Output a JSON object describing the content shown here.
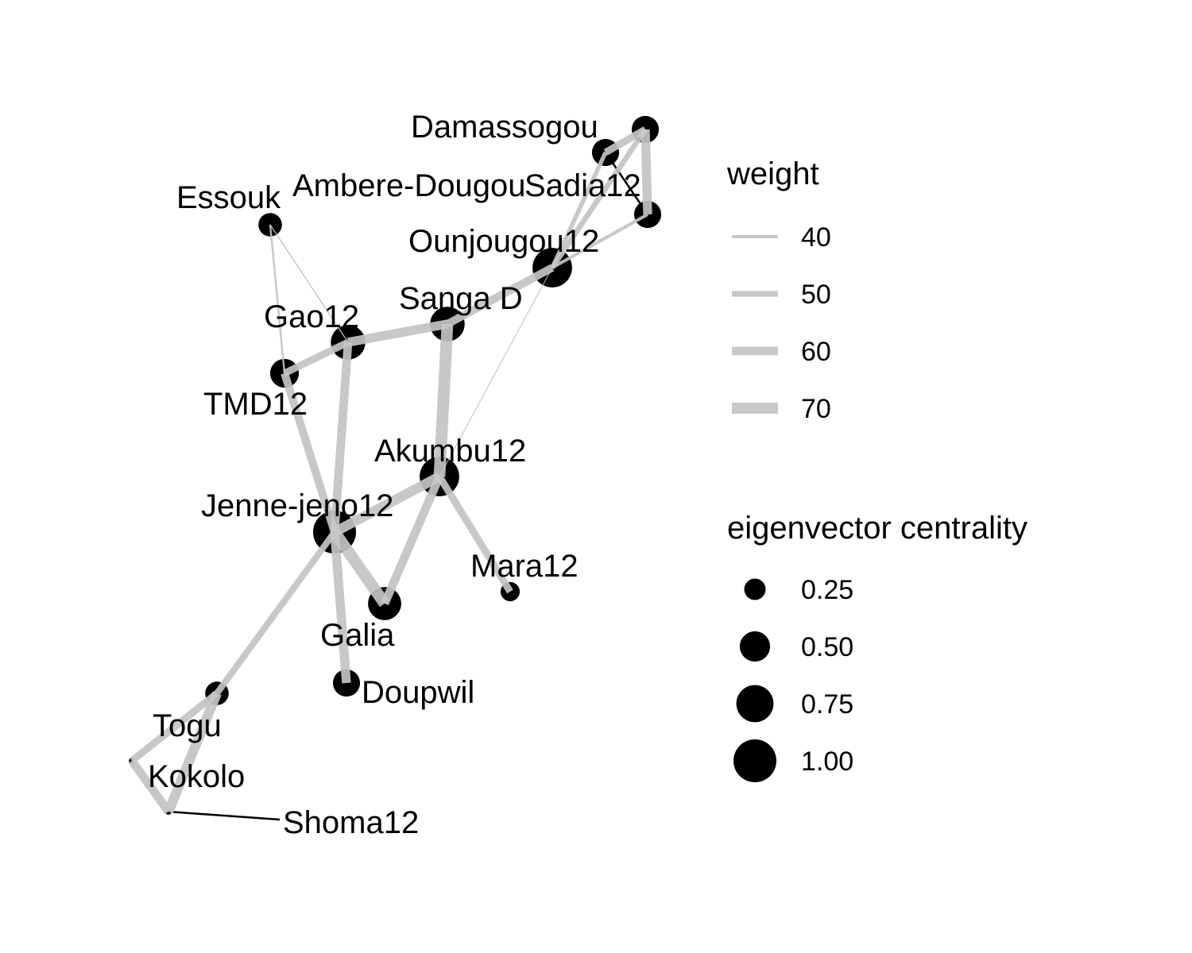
{
  "colors": {
    "edge": "#c8c8c8",
    "edge_dark": "#000000",
    "node": "#000000",
    "background": "#ffffff"
  },
  "graph": {
    "nodes": [
      {
        "id": "Damassogou",
        "label": "Damassogou",
        "centrality": 0.4
      },
      {
        "id": "Ambere-Dougou",
        "label": "Ambere-Dougou",
        "centrality": 0.4
      },
      {
        "id": "Sadia12",
        "label": "Sadia12",
        "centrality": 0.4
      },
      {
        "id": "Essouk",
        "label": "Essouk",
        "centrality": 0.3
      },
      {
        "id": "Ounjougou12",
        "label": "Ounjougou12",
        "centrality": 0.85
      },
      {
        "id": "Sanga D",
        "label": "Sanga D",
        "centrality": 0.65
      },
      {
        "id": "Gao12",
        "label": "Gao12",
        "centrality": 0.65
      },
      {
        "id": "TMD12",
        "label": "TMD12",
        "centrality": 0.45
      },
      {
        "id": "Akumbu12",
        "label": "Akumbu12",
        "centrality": 0.85
      },
      {
        "id": "Jenne-jeno12",
        "label": "Jenne-jeno12",
        "centrality": 1.0
      },
      {
        "id": "Mara12",
        "label": "Mara12",
        "centrality": 0.2
      },
      {
        "id": "Galia",
        "label": "Galia",
        "centrality": 0.6
      },
      {
        "id": "Doupwil",
        "label": "Doupwil",
        "centrality": 0.4
      },
      {
        "id": "Togu",
        "label": "Togu",
        "centrality": 0.3
      },
      {
        "id": "Kokolo",
        "label": "Kokolo",
        "centrality": 0.02
      },
      {
        "id": "Shoma12",
        "label": "Shoma12",
        "centrality": 0.02
      }
    ],
    "edges": [
      {
        "source": "Damassogou",
        "target": "Ambere-Dougou",
        "weight": 55
      },
      {
        "source": "Damassogou",
        "target": "Sadia12",
        "weight": 62
      },
      {
        "source": "Damassogou",
        "target": "Ounjougou12",
        "weight": 48
      },
      {
        "source": "Ambere-Dougou",
        "target": "Ounjougou12",
        "weight": 44
      },
      {
        "source": "Ambere-Dougou",
        "target": "Sadia12",
        "weight": 25,
        "dark": true
      },
      {
        "source": "Sadia12",
        "target": "Ounjougou12",
        "weight": 40
      },
      {
        "source": "Ounjougou12",
        "target": "Sanga D",
        "weight": 58
      },
      {
        "source": "Ounjougou12",
        "target": "Akumbu12",
        "weight": 28
      },
      {
        "source": "Sanga D",
        "target": "Gao12",
        "weight": 62
      },
      {
        "source": "Sanga D",
        "target": "Akumbu12",
        "weight": 72
      },
      {
        "source": "Gao12",
        "target": "TMD12",
        "weight": 55
      },
      {
        "source": "Gao12",
        "target": "Jenne-jeno12",
        "weight": 60
      },
      {
        "source": "Essouk",
        "target": "TMD12",
        "weight": 35
      },
      {
        "source": "Essouk",
        "target": "Gao12",
        "weight": 32
      },
      {
        "source": "TMD12",
        "target": "Jenne-jeno12",
        "weight": 58
      },
      {
        "source": "Jenne-jeno12",
        "target": "Akumbu12",
        "weight": 65
      },
      {
        "source": "Jenne-jeno12",
        "target": "Galia",
        "weight": 72
      },
      {
        "source": "Jenne-jeno12",
        "target": "Doupwil",
        "weight": 62
      },
      {
        "source": "Jenne-jeno12",
        "target": "Togu",
        "weight": 52
      },
      {
        "source": "Akumbu12",
        "target": "Galia",
        "weight": 60
      },
      {
        "source": "Akumbu12",
        "target": "Mara12",
        "weight": 55
      },
      {
        "source": "Togu",
        "target": "Kokolo",
        "weight": 55
      },
      {
        "source": "Togu",
        "target": "Shoma12",
        "weight": 65
      },
      {
        "source": "Kokolo",
        "target": "Shoma12",
        "weight": 60
      },
      {
        "source": "Shoma12",
        "target": "Shoma12-tag",
        "weight": 25,
        "dark": true
      }
    ]
  },
  "legend": {
    "weight": {
      "title": "weight",
      "entries": [
        {
          "label": "40",
          "value": 40
        },
        {
          "label": "50",
          "value": 50
        },
        {
          "label": "60",
          "value": 60
        },
        {
          "label": "70",
          "value": 70
        }
      ]
    },
    "centrality": {
      "title": "eigenvector centrality",
      "entries": [
        {
          "label": "0.25",
          "value": 0.25
        },
        {
          "label": "0.50",
          "value": 0.5
        },
        {
          "label": "0.75",
          "value": 0.75
        },
        {
          "label": "1.00",
          "value": 1.0
        }
      ]
    }
  }
}
